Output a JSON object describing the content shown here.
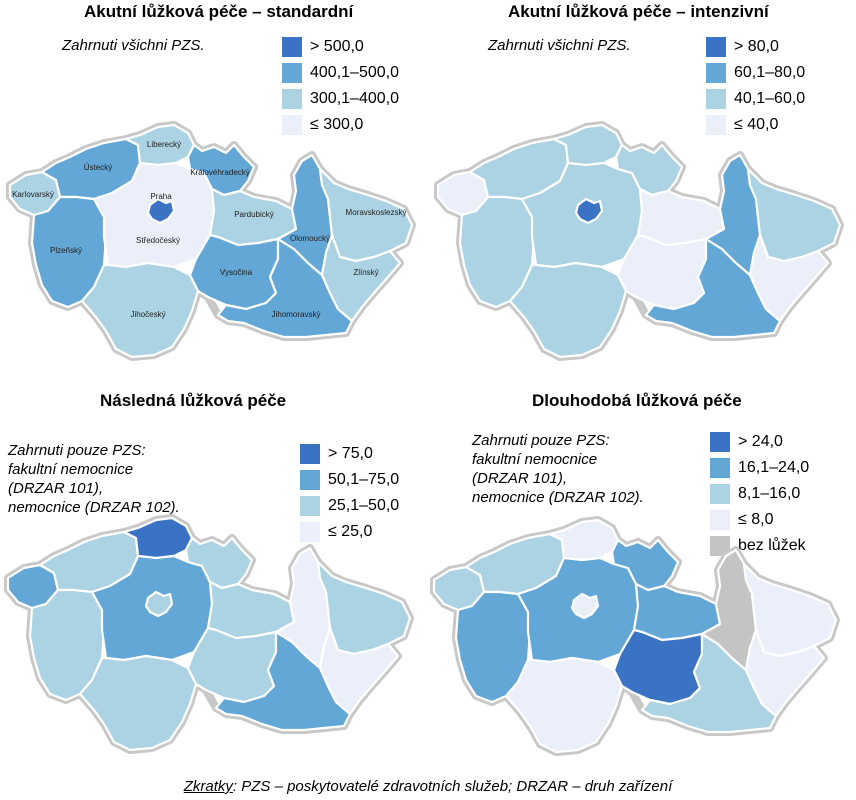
{
  "colors": {
    "c4": "#3a72c4",
    "c3": "#62a7d6",
    "c2": "#acd3e3",
    "c1": "#eaeffa",
    "na": "#c4c4c4"
  },
  "region_names": {
    "PHA": "Praha",
    "STC": "Středočeský",
    "JHC": "Jihočeský",
    "PLK": "Plzeňský",
    "KVK": "Karlovarský",
    "ULK": "Ústecký",
    "LBK": "Liberecký",
    "HKK": "Královéhradecký",
    "PAK": "Pardubický",
    "VYS": "Vysočina",
    "JHM": "Jihomoravský",
    "OLK": "Olomoucký",
    "MSK": "Moravskoslezský",
    "ZLK": "Zlínský"
  },
  "maps": [
    {
      "title": "Akutní lůžková péče – standardní",
      "note": [
        "Zahrnuti všichni PZS."
      ],
      "legend": [
        {
          "label": "> 500,0",
          "color": "c4"
        },
        {
          "label": "400,1–500,0",
          "color": "c3"
        },
        {
          "label": "300,1–400,0",
          "color": "c2"
        },
        {
          "label": "≤ 300,0",
          "color": "c1"
        }
      ],
      "regions": {
        "PHA": "c4",
        "STC": "c1",
        "JHC": "c2",
        "PLK": "c3",
        "KVK": "c2",
        "ULK": "c3",
        "LBK": "c2",
        "HKK": "c3",
        "PAK": "c2",
        "VYS": "c3",
        "JHM": "c3",
        "OLK": "c3",
        "MSK": "c2",
        "ZLK": "c2"
      }
    },
    {
      "title": "Akutní lůžková péče – intenzivní",
      "note": [
        "Zahrnuti všichni PZS."
      ],
      "legend": [
        {
          "label": "> 80,0",
          "color": "c4"
        },
        {
          "label": "60,1–80,0",
          "color": "c3"
        },
        {
          "label": "40,1–60,0",
          "color": "c2"
        },
        {
          "label": "≤ 40,0",
          "color": "c1"
        }
      ],
      "regions": {
        "PHA": "c4",
        "STC": "c2",
        "JHC": "c2",
        "PLK": "c2",
        "KVK": "c1",
        "ULK": "c2",
        "LBK": "c2",
        "HKK": "c2",
        "PAK": "c1",
        "VYS": "c1",
        "JHM": "c3",
        "OLK": "c3",
        "MSK": "c2",
        "ZLK": "c1"
      }
    },
    {
      "title": "Následná lůžková péče",
      "note": [
        "Zahrnuti pouze PZS:",
        "fakultní nemocnice",
        "(DRZAR 101),",
        "nemocnice (DRZAR 102)."
      ],
      "legend": [
        {
          "label": "> 75,0",
          "color": "c4"
        },
        {
          "label": "50,1–75,0",
          "color": "c3"
        },
        {
          "label": "25,1–50,0",
          "color": "c2"
        },
        {
          "label": "≤ 25,0",
          "color": "c1"
        }
      ],
      "regions": {
        "PHA": "c2",
        "STC": "c3",
        "JHC": "c2",
        "PLK": "c2",
        "KVK": "c3",
        "ULK": "c2",
        "LBK": "c4",
        "HKK": "c2",
        "PAK": "c2",
        "VYS": "c2",
        "JHM": "c3",
        "OLK": "c1",
        "MSK": "c2",
        "ZLK": "c1"
      }
    },
    {
      "title": "Dlouhodobá lůžková péče",
      "note": [
        "Zahrnuti pouze PZS:",
        "fakultní nemocnice",
        "(DRZAR 101),",
        "nemocnice (DRZAR 102)."
      ],
      "legend": [
        {
          "label": "> 24,0",
          "color": "c4"
        },
        {
          "label": "16,1–24,0",
          "color": "c3"
        },
        {
          "label": "8,1–16,0",
          "color": "c2"
        },
        {
          "label": "≤ 8,0",
          "color": "c1"
        },
        {
          "label": "bez lůžek",
          "color": "na"
        }
      ],
      "regions": {
        "PHA": "c1",
        "STC": "c3",
        "JHC": "c1",
        "PLK": "c3",
        "KVK": "c2",
        "ULK": "c2",
        "LBK": "c1",
        "HKK": "c3",
        "PAK": "c3",
        "VYS": "c4",
        "JHM": "c2",
        "OLK": "na",
        "MSK": "c1",
        "ZLK": "c1"
      }
    }
  ],
  "footer": {
    "abbr_label": "Zkratky",
    "text": ": PZS – poskytovatelé zdravotních služeb; DRZAR – druh zařízení"
  }
}
